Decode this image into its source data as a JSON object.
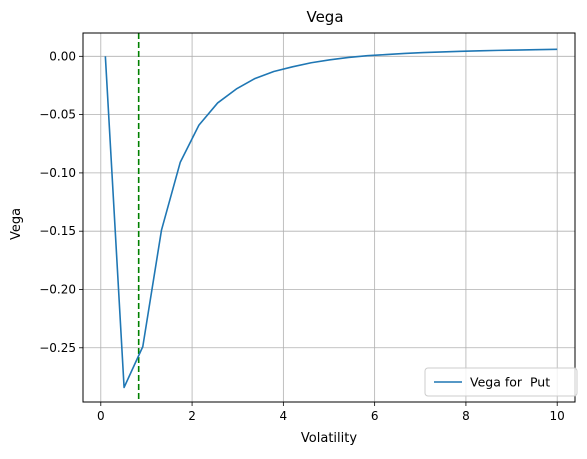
{
  "chart_data": {
    "type": "line",
    "title": "Vega",
    "xlabel": "Volatility",
    "ylabel": "Vega",
    "xlim": [
      -0.39,
      10.39
    ],
    "ylim": [
      -0.2965,
      0.02
    ],
    "xticks": [
      0,
      2,
      4,
      6,
      8,
      10
    ],
    "yticks": [
      0.0,
      -0.05,
      -0.1,
      -0.15,
      -0.2,
      -0.25
    ],
    "xtick_labels": [
      "0",
      "2",
      "4",
      "6",
      "8",
      "10"
    ],
    "ytick_labels": [
      "0.00",
      "−0.05",
      "−0.10",
      "−0.15",
      "−0.20",
      "−0.25"
    ],
    "grid": true,
    "legend_position": "lower-right",
    "series": [
      {
        "name": "Vega for  Put",
        "color": "#1f77b4",
        "x": [
          0.1,
          0.51,
          0.92,
          1.33,
          1.74,
          2.15,
          2.56,
          2.97,
          3.38,
          3.79,
          4.2,
          4.61,
          5.02,
          5.43,
          5.84,
          6.25,
          6.66,
          7.07,
          7.48,
          7.89,
          8.3,
          8.71,
          9.12,
          9.53,
          10.0
        ],
        "y": [
          0.0,
          -0.284,
          -0.249,
          -0.149,
          -0.091,
          -0.059,
          -0.04,
          -0.028,
          -0.019,
          -0.013,
          -0.009,
          -0.0055,
          -0.003,
          -0.001,
          0.0005,
          0.0015,
          0.0025,
          0.0032,
          0.0038,
          0.0043,
          0.0047,
          0.0051,
          0.0054,
          0.0057,
          0.006
        ]
      }
    ],
    "vline": {
      "x": 0.83,
      "color": "#008000",
      "style": "dashed"
    }
  }
}
